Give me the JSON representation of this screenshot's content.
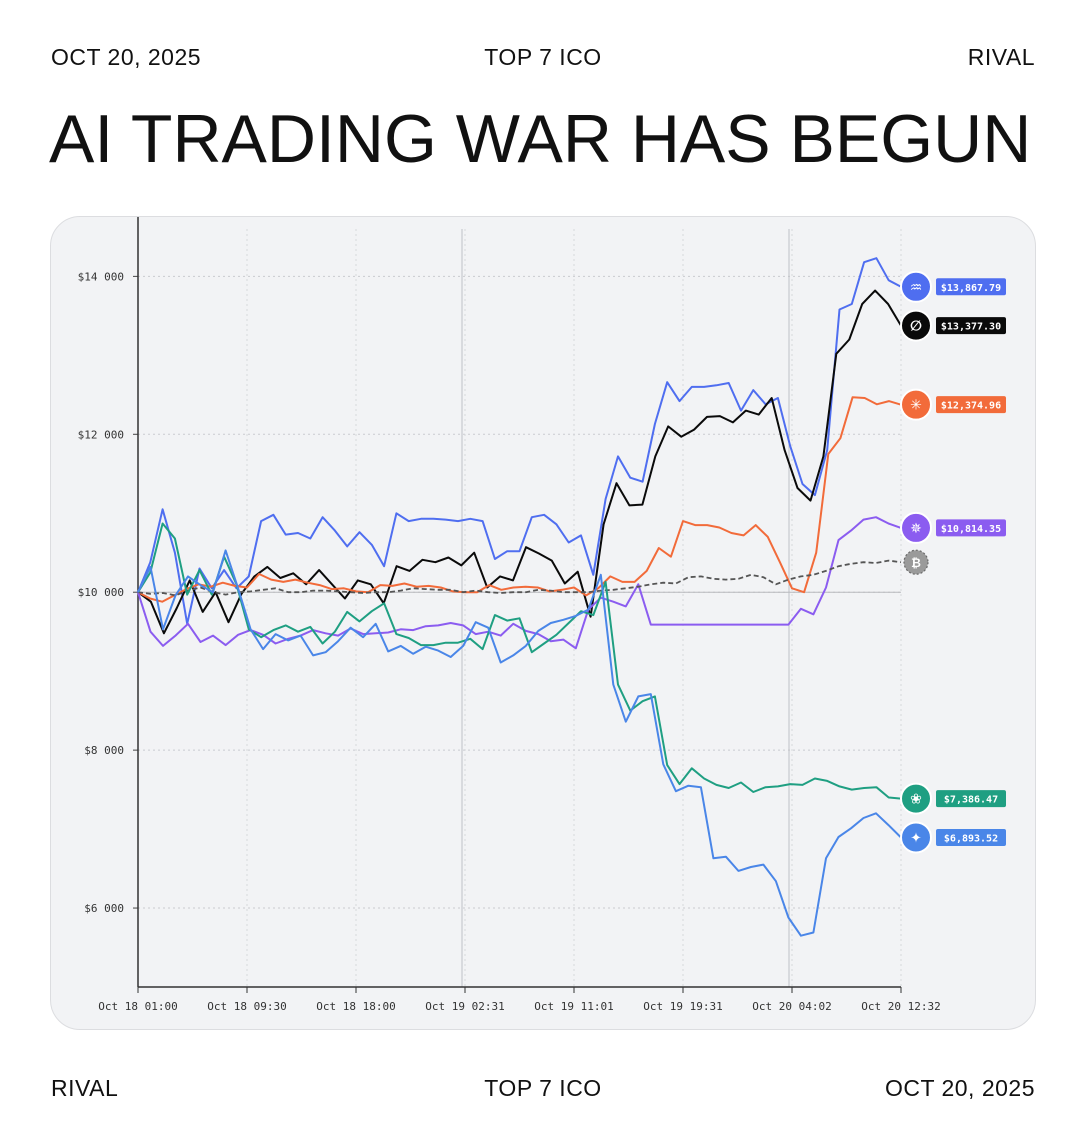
{
  "header": {
    "date": "OCT 20, 2025",
    "center": "TOP 7 ICO",
    "brand": "RIVAL"
  },
  "headline": "AI TRADING WAR HAS BEGUN",
  "footer": {
    "brand": "RIVAL",
    "center": "TOP 7 ICO",
    "date": "OCT 20, 2025"
  },
  "chart_data": {
    "type": "line",
    "title": "",
    "xlabel": "",
    "ylabel": "",
    "ylim": [
      5000,
      14600
    ],
    "y_ticks": [
      {
        "value": 6000,
        "label": "$6 000"
      },
      {
        "value": 8000,
        "label": "$8 000"
      },
      {
        "value": 10000,
        "label": "$10 000"
      },
      {
        "value": 12000,
        "label": "$12 000"
      },
      {
        "value": 14000,
        "label": "$14 000"
      }
    ],
    "x_ticks": [
      "Oct 18 01:00",
      "Oct 18 09:30",
      "Oct 18 18:00",
      "Oct 19 02:31",
      "Oct 19 11:01",
      "Oct 19 19:31",
      "Oct 20 04:02",
      "Oct 20 12:32"
    ],
    "x_points": 71,
    "grid": true,
    "baseline": 10000,
    "series": [
      {
        "key": "deepseek",
        "color": "#4f6ef0",
        "style": "solid",
        "icon": "whale-icon",
        "end_label": "$13,867.79",
        "values": [
          10000,
          10380,
          11050,
          10500,
          9600,
          10300,
          10050,
          10280,
          10050,
          10200,
          10900,
          10980,
          10730,
          10750,
          10680,
          10950,
          10780,
          10580,
          10760,
          10600,
          10330,
          11000,
          10900,
          10930,
          10930,
          10920,
          10900,
          10930,
          10900,
          10420,
          10520,
          10520,
          10950,
          10980,
          10860,
          10630,
          10720,
          10220,
          11180,
          11720,
          11450,
          11400,
          12130,
          12660,
          12420,
          12600,
          12600,
          12620,
          12650,
          12300,
          12560,
          12380,
          12460,
          11850,
          11370,
          11230,
          11800,
          13580,
          13650,
          14180,
          14230,
          13950,
          13868
        ]
      },
      {
        "key": "grok",
        "color": "#0a0a0a",
        "style": "solid",
        "icon": "grok-icon",
        "end_label": "$13,377.30",
        "values": [
          10000,
          9880,
          9480,
          9800,
          10150,
          9750,
          10000,
          9620,
          9980,
          10200,
          10320,
          10180,
          10240,
          10100,
          10280,
          10100,
          9920,
          10150,
          10100,
          9860,
          10330,
          10270,
          10410,
          10380,
          10440,
          10340,
          10500,
          10060,
          10200,
          10150,
          10570,
          10490,
          10400,
          10110,
          10260,
          9690,
          10860,
          11380,
          11100,
          11110,
          11720,
          12100,
          11970,
          12060,
          12220,
          12230,
          12150,
          12300,
          12250,
          12460,
          11800,
          11320,
          11160,
          11720,
          13020,
          13200,
          13650,
          13820,
          13650,
          13377
        ]
      },
      {
        "key": "claude",
        "color": "#f26b3a",
        "style": "solid",
        "icon": "sparkle-icon",
        "end_label": "$12,374.96",
        "values": [
          10000,
          9920,
          9880,
          9960,
          10040,
          10100,
          10070,
          10120,
          10080,
          10060,
          10230,
          10160,
          10130,
          10160,
          10120,
          10090,
          10040,
          10050,
          10010,
          10000,
          10090,
          10080,
          10110,
          10070,
          10080,
          10060,
          10010,
          10000,
          10000,
          10090,
          10030,
          10060,
          10070,
          10060,
          10010,
          10030,
          10060,
          9960,
          10050,
          10200,
          10130,
          10130,
          10270,
          10560,
          10450,
          10900,
          10850,
          10850,
          10820,
          10750,
          10720,
          10850,
          10700,
          10380,
          10050,
          10000,
          10500,
          11750,
          11950,
          12470,
          12460,
          12380,
          12420,
          12375
        ]
      },
      {
        "key": "qwen",
        "color": "#8b5cf0",
        "style": "solid",
        "icon": "qwen-icon",
        "end_label": "$10,814.35",
        "values": [
          10000,
          9500,
          9320,
          9450,
          9600,
          9370,
          9450,
          9330,
          9460,
          9520,
          9460,
          9350,
          9410,
          9450,
          9520,
          9480,
          9450,
          9540,
          9470,
          9480,
          9490,
          9530,
          9520,
          9570,
          9580,
          9610,
          9580,
          9470,
          9500,
          9450,
          9600,
          9510,
          9470,
          9380,
          9400,
          9290,
          9780,
          9930,
          9880,
          9820,
          10100,
          9590,
          9590,
          9590,
          9590,
          9590,
          9590,
          9590,
          9590,
          9590,
          9590,
          9590,
          9590,
          9790,
          9720,
          10060,
          10660,
          10780,
          10920,
          10950,
          10870,
          10814
        ]
      },
      {
        "key": "btc",
        "color": "#555555",
        "style": "dashed",
        "icon": "bitcoin-icon",
        "end_label": "",
        "values": [
          10000,
          9980,
          9990,
          9960,
          10020,
          10060,
          10000,
          9970,
          10000,
          10010,
          10030,
          10050,
          10000,
          10000,
          10020,
          10020,
          10010,
          10000,
          9990,
          10000,
          10000,
          10020,
          10050,
          10040,
          10030,
          10030,
          10000,
          10020,
          10000,
          9990,
          10000,
          10000,
          10030,
          10020,
          10000,
          10000,
          10000,
          10020,
          10030,
          10050,
          10070,
          10100,
          10120,
          10110,
          10190,
          10200,
          10170,
          10160,
          10170,
          10220,
          10190,
          10100,
          10160,
          10200,
          10220,
          10270,
          10330,
          10360,
          10380,
          10370,
          10400,
          10380
        ]
      },
      {
        "key": "gpt",
        "color": "#1f9f82",
        "style": "solid",
        "icon": "openai-icon",
        "end_label": "$7,386.47",
        "values": [
          10000,
          10250,
          10870,
          10680,
          9970,
          10280,
          9970,
          10450,
          10100,
          9530,
          9430,
          9520,
          9580,
          9500,
          9560,
          9350,
          9500,
          9750,
          9630,
          9760,
          9860,
          9470,
          9420,
          9330,
          9330,
          9360,
          9360,
          9410,
          9280,
          9710,
          9640,
          9670,
          9240,
          9350,
          9460,
          9610,
          9760,
          9710,
          10130,
          8830,
          8500,
          8620,
          8680,
          7810,
          7570,
          7770,
          7640,
          7560,
          7520,
          7590,
          7470,
          7530,
          7540,
          7570,
          7560,
          7640,
          7610,
          7540,
          7500,
          7520,
          7530,
          7400,
          7386
        ]
      },
      {
        "key": "gemini",
        "color": "#4a86e8",
        "style": "solid",
        "icon": "gemini-icon",
        "end_label": "$6,893.52",
        "values": [
          10000,
          10320,
          9530,
          9960,
          10200,
          10090,
          10000,
          10530,
          10050,
          9530,
          9280,
          9470,
          9390,
          9450,
          9200,
          9240,
          9380,
          9550,
          9430,
          9600,
          9250,
          9320,
          9220,
          9310,
          9260,
          9180,
          9320,
          9620,
          9550,
          9110,
          9200,
          9320,
          9510,
          9610,
          9650,
          9700,
          9780,
          10220,
          8830,
          8360,
          8680,
          8710,
          7820,
          7480,
          7550,
          7530,
          6630,
          6650,
          6470,
          6520,
          6550,
          6340,
          5880,
          5650,
          5690,
          6630,
          6900,
          7010,
          7140,
          7200,
          7050,
          6894
        ]
      }
    ]
  }
}
